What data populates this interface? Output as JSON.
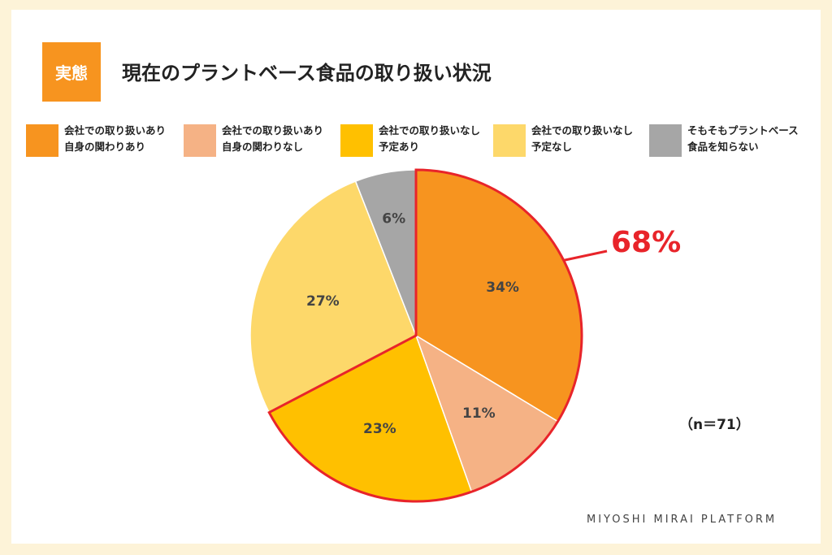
{
  "badge": "実態",
  "title": "現在のプラントベース食品の取り扱い状況",
  "n_label": "（n＝71）",
  "footer": "MIYOSHI MIRAI PLATFORM",
  "colors": {
    "orange": "#f7941f",
    "salmon": "#f5b285",
    "yellow": "#ffc000",
    "light_yellow": "#fdd86a",
    "gray": "#a6a6a6",
    "highlight": "#e8242a"
  },
  "chart_data": {
    "type": "pie",
    "title": "現在のプラントベース食品の取り扱い状況",
    "slices": [
      {
        "name": "会社での取り扱いあり\n自身の関わりあり",
        "value": 34,
        "label": "34%",
        "color": "#f7941f"
      },
      {
        "name": "会社での取り扱いあり\n自身の関わりなし",
        "value": 11,
        "label": "11%",
        "color": "#f5b285"
      },
      {
        "name": "会社での取り扱いなし\n予定あり",
        "value": 23,
        "label": "23%",
        "color": "#ffc000"
      },
      {
        "name": "会社での取り扱いなし\n予定なし",
        "value": 27,
        "label": "27%",
        "color": "#fdd86a"
      },
      {
        "name": "そもそもプラントベース\n食品を知らない",
        "value": 6,
        "label": "6%",
        "color": "#a6a6a6"
      }
    ],
    "highlight": {
      "label": "68%",
      "slices": [
        0,
        1,
        2
      ]
    },
    "legend_position": "top"
  }
}
